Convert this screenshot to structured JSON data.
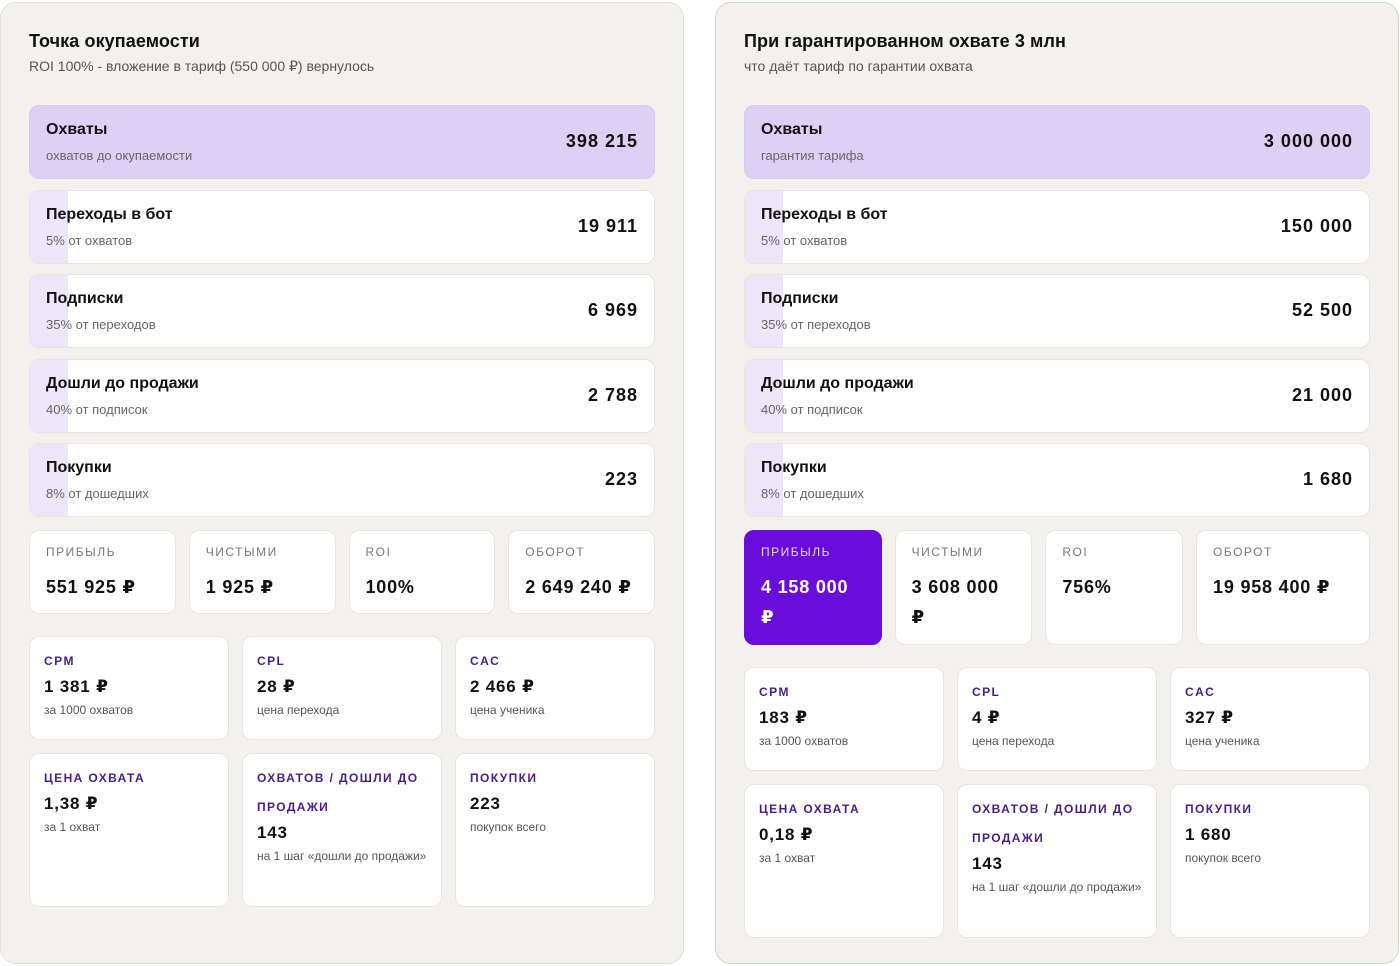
{
  "left": {
    "title": "Точка окупаемости",
    "subtitle": "ROI 100% - вложение в тариф (550 000 ₽) вернулось",
    "funnel": [
      {
        "label": "Охваты",
        "sub": "охватов до окупаемости",
        "value": "398 215"
      },
      {
        "label": "Переходы в бот",
        "sub": "5% от охватов",
        "value": "19 911"
      },
      {
        "label": "Подписки",
        "sub": "35% от переходов",
        "value": "6 969"
      },
      {
        "label": "Дошли до продажи",
        "sub": "40% от подписок",
        "value": "2 788"
      },
      {
        "label": "Покупки",
        "sub": "8% от дошедших",
        "value": "223"
      }
    ],
    "stats": [
      {
        "label": "Прибыль",
        "value": "551 925 ₽"
      },
      {
        "label": "Чистыми",
        "value": "1 925 ₽"
      },
      {
        "label": "ROI",
        "value": "100%"
      },
      {
        "label": "Оборот",
        "value": "2 649 240 ₽"
      }
    ],
    "metrics": [
      {
        "label": "CPM",
        "value": "1 381 ₽",
        "sub": "за 1000 охватов"
      },
      {
        "label": "CPL",
        "value": "28 ₽",
        "sub": "цена перехода"
      },
      {
        "label": "CAC",
        "value": "2 466 ₽",
        "sub": "цена ученика"
      },
      {
        "label": "Цена охвата",
        "value": "1,38 ₽",
        "sub": "за 1 охват"
      },
      {
        "label": "Охватов / дошли до продажи",
        "value": "143",
        "sub": "на 1 шаг «дошли до продажи»"
      },
      {
        "label": "Покупки",
        "value": "223",
        "sub": "покупок всего"
      }
    ]
  },
  "right": {
    "title": "При гарантированном охвате 3 млн",
    "subtitle": "что даёт тариф по гарантии охвата",
    "funnel": [
      {
        "label": "Охваты",
        "sub": "гарантия тарифа",
        "value": "3 000 000"
      },
      {
        "label": "Переходы в бот",
        "sub": "5% от охватов",
        "value": "150 000"
      },
      {
        "label": "Подписки",
        "sub": "35% от переходов",
        "value": "52 500"
      },
      {
        "label": "Дошли до продажи",
        "sub": "40% от подписок",
        "value": "21 000"
      },
      {
        "label": "Покупки",
        "sub": "8% от дошедших",
        "value": "1 680"
      }
    ],
    "stats": [
      {
        "label": "Прибыль",
        "value": "4 158 000 ₽"
      },
      {
        "label": "Чистыми",
        "value": "3 608 000 ₽"
      },
      {
        "label": "ROI",
        "value": "756%"
      },
      {
        "label": "Оборот",
        "value": "19 958 400 ₽"
      }
    ],
    "metrics": [
      {
        "label": "CPM",
        "value": "183 ₽",
        "sub": "за 1000 охватов"
      },
      {
        "label": "CPL",
        "value": "4 ₽",
        "sub": "цена перехода"
      },
      {
        "label": "CAC",
        "value": "327 ₽",
        "sub": "цена ученика"
      },
      {
        "label": "Цена охвата",
        "value": "0,18 ₽",
        "sub": "за 1 охват"
      },
      {
        "label": "Охватов / дошли до продажи",
        "value": "143",
        "sub": "на 1 шаг «дошли до продажи»"
      },
      {
        "label": "Покупки",
        "value": "1 680",
        "sub": "покупок всего"
      }
    ]
  },
  "colors": {
    "accent": "#6a0ddb",
    "highlight": "#ddd0f5",
    "metric_label": "#4a1c8a"
  }
}
